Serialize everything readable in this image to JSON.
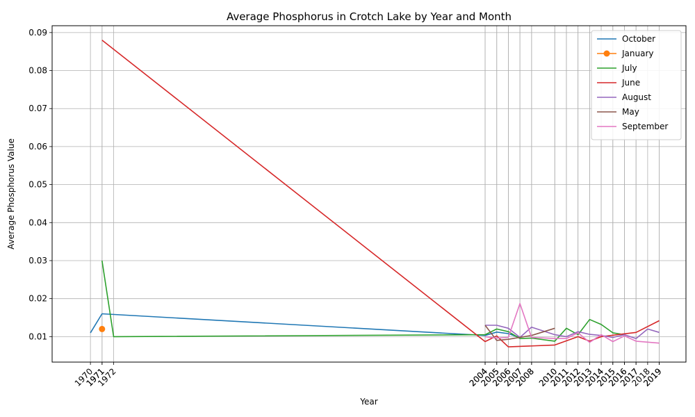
{
  "chart_data": {
    "type": "line",
    "title": "Average Phosphorus in Crotch Lake by Year and Month",
    "xlabel": "Year",
    "ylabel": "Average Phosphorus Value",
    "xlim": [
      1966.7,
      2021.3
    ],
    "ylim": [
      0.0033,
      0.0918
    ],
    "grid": true,
    "legend_position": "top-right",
    "x_ticks": [
      "1970",
      "1971",
      "1971",
      "1972",
      "2004",
      "2004",
      "2005",
      "2005",
      "2006",
      "2006",
      "2007",
      "2007",
      "2008",
      "2008",
      "2010",
      "2010",
      "2011",
      "2011",
      "2012",
      "2012",
      "2013",
      "2013",
      "2014",
      "2014",
      "2015",
      "2015",
      "2016",
      "2016",
      "2017",
      "2017",
      "2018",
      "2019",
      "2019"
    ],
    "x_tick_values": [
      1970,
      1971,
      1971,
      1972,
      2004,
      2004,
      2005,
      2005,
      2006,
      2006,
      2007,
      2007,
      2008,
      2008,
      2010,
      2010,
      2011,
      2011,
      2012,
      2012,
      2013,
      2013,
      2014,
      2014,
      2015,
      2015,
      2016,
      2016,
      2017,
      2017,
      2018,
      2019,
      2019
    ],
    "y_ticks": [
      "0.01",
      "0.02",
      "0.03",
      "0.04",
      "0.05",
      "0.06",
      "0.07",
      "0.08",
      "0.09"
    ],
    "y_tick_values": [
      0.01,
      0.02,
      0.03,
      0.04,
      0.05,
      0.06,
      0.07,
      0.08,
      0.09
    ],
    "series": [
      {
        "name": "October",
        "color": "#1f77b4",
        "marker": "none",
        "x": [
          1970,
          1971,
          2004,
          2005,
          2006,
          2007
        ],
        "y": [
          0.011,
          0.016,
          0.0103,
          0.0112,
          0.0108,
          0.0097
        ]
      },
      {
        "name": "January",
        "color": "#ff7f0e",
        "marker": "circle",
        "x": [
          1971
        ],
        "y": [
          0.012
        ]
      },
      {
        "name": "July",
        "color": "#2ca02c",
        "marker": "none",
        "x": [
          1971,
          1972,
          2004,
          2005,
          2006,
          2007,
          2008,
          2010,
          2011,
          2012,
          2013,
          2014,
          2015,
          2016
        ],
        "y": [
          0.03,
          0.01,
          0.0105,
          0.012,
          0.0113,
          0.0095,
          0.0096,
          0.0088,
          0.0122,
          0.0105,
          0.0145,
          0.0132,
          0.011,
          0.0105
        ]
      },
      {
        "name": "June",
        "color": "#d62728",
        "marker": "none",
        "x": [
          1971,
          2004,
          2005,
          2006,
          2010,
          2012,
          2013,
          2014,
          2017,
          2019
        ],
        "y": [
          0.088,
          0.0087,
          0.0102,
          0.0073,
          0.0078,
          0.01,
          0.0088,
          0.01,
          0.0111,
          0.0142
        ]
      },
      {
        "name": "August",
        "color": "#9467bd",
        "marker": "none",
        "x": [
          2004,
          2005,
          2006,
          2007,
          2008,
          2010,
          2011,
          2012,
          2013,
          2014,
          2015,
          2016,
          2017,
          2018,
          2019
        ],
        "y": [
          0.013,
          0.013,
          0.0122,
          0.0098,
          0.0125,
          0.0105,
          0.01,
          0.0113,
          0.0106,
          0.0103,
          0.0098,
          0.0105,
          0.0095,
          0.012,
          0.0111
        ]
      },
      {
        "name": "May",
        "color": "#8c564b",
        "marker": "none",
        "x": [
          2004,
          2005,
          2006,
          2008,
          2010
        ],
        "y": [
          0.013,
          0.009,
          0.0093,
          0.0103,
          0.0122
        ]
      },
      {
        "name": "September",
        "color": "#e377c2",
        "marker": "none",
        "x": [
          2004,
          2005,
          2006,
          2007,
          2008,
          2010,
          2011,
          2012,
          2013,
          2014,
          2015,
          2016,
          2017,
          2019
        ],
        "y": [
          0.01,
          0.0096,
          0.0098,
          0.0187,
          0.0098,
          0.0095,
          0.0095,
          0.011,
          0.0085,
          0.0105,
          0.0087,
          0.0102,
          0.0088,
          0.0083
        ]
      }
    ]
  }
}
